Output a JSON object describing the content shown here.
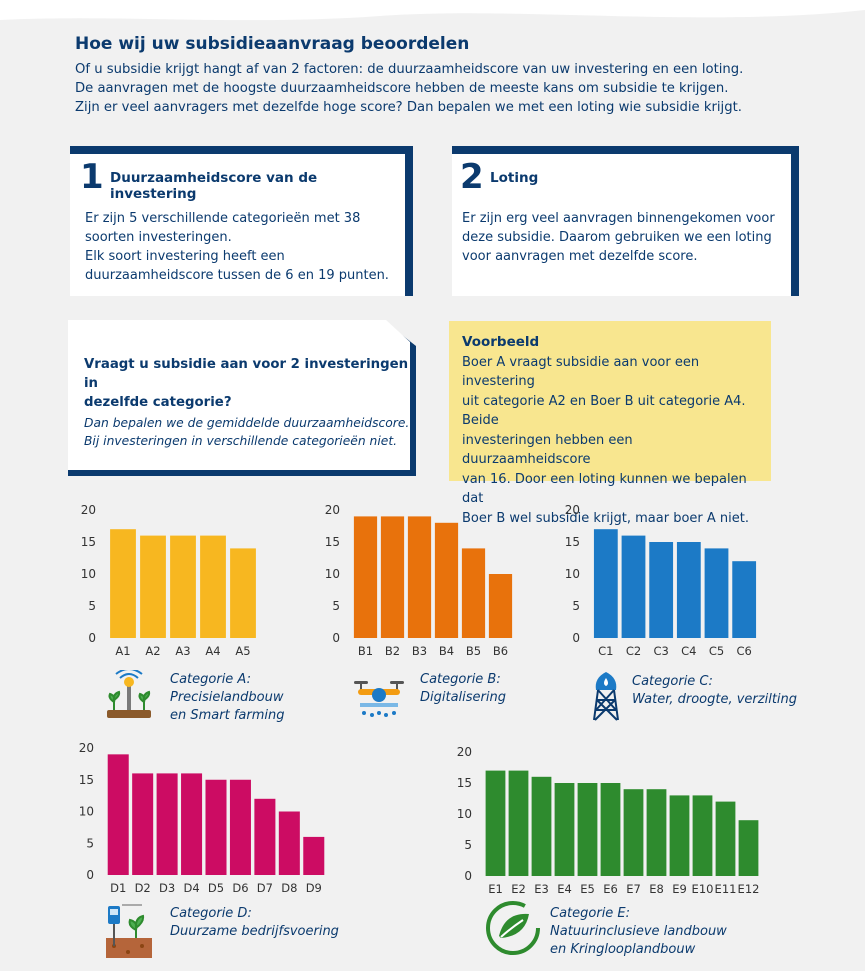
{
  "intro": {
    "title": "Hoe wij uw subsidieaanvraag beoordelen",
    "line1": "Of u subsidie krijgt hangt af van 2 factoren: de duurzaamheidscore van uw investering en een loting.",
    "line2": "De aanvragen met de hoogste duurzaamheidscore hebben de meeste kans om subsidie te krijgen.",
    "line3": "Zijn er veel aanvragers met dezelfde hoge score? Dan bepalen we met een loting wie subsidie krijgt."
  },
  "factor1": {
    "number": "1",
    "title": "Duurzaamheidscore van de investering",
    "body1": "Er zijn 5 verschillende categorieën met 38",
    "body2": "soorten investeringen.",
    "body3": "Elk soort investering heeft een",
    "body4": "duurzaamheidscore tussen de 6 en 19 punten."
  },
  "factor2": {
    "number": "2",
    "title": "Loting",
    "body1": "Er zijn erg veel aanvragen binnengekomen voor",
    "body2": "deze subsidie. Daarom gebruiken we een loting",
    "body3": "voor aanvragen met dezelfde score."
  },
  "question": {
    "title1": "Vraagt u subsidie aan voor 2 investeringen in",
    "title2": "dezelfde categorie?",
    "body1": "Dan bepalen we de gemiddelde duurzaamheidscore.",
    "body2": "Bij investeringen in verschillende categorieën niet."
  },
  "example": {
    "title": "Voorbeeld",
    "line1": "Boer A vraagt subsidie aan voor een investering",
    "line2": "uit categorie A2 en Boer B uit categorie A4. Beide",
    "line3": "investeringen hebben een duurzaamheidscore",
    "line4": "van 16. Door een loting kunnen we bepalen dat",
    "line5": "Boer B wel subsidie krijgt, maar boer A niet."
  },
  "colors": {
    "A": "#f7b720",
    "B": "#e8720c",
    "C": "#1c7ac6",
    "D": "#cc0c63",
    "E": "#2e8b2e",
    "navy": "#0b3a6e"
  },
  "icons": {
    "A": "smart-farming-icon",
    "B": "drone-icon",
    "C": "water-tower-icon",
    "D": "soil-sensor-icon",
    "E": "circular-leaf-icon"
  },
  "chart_data": [
    {
      "type": "bar",
      "categories": [
        "A1",
        "A2",
        "A3",
        "A4",
        "A5"
      ],
      "values": [
        17,
        16,
        16,
        16,
        14
      ],
      "ylim": [
        0,
        20
      ],
      "yticks": [
        0,
        5,
        10,
        15,
        20
      ],
      "caption1": "Categorie A:",
      "caption2": "Precisielandbouw",
      "caption3": "en Smart farming"
    },
    {
      "type": "bar",
      "categories": [
        "B1",
        "B2",
        "B3",
        "B4",
        "B5",
        "B6"
      ],
      "values": [
        19,
        19,
        19,
        18,
        14,
        10
      ],
      "ylim": [
        0,
        20
      ],
      "yticks": [
        0,
        5,
        10,
        15,
        20
      ],
      "caption1": "Categorie B:",
      "caption2": "Digitalisering"
    },
    {
      "type": "bar",
      "categories": [
        "C1",
        "C2",
        "C3",
        "C4",
        "C5",
        "C6"
      ],
      "values": [
        17,
        16,
        15,
        15,
        14,
        12
      ],
      "ylim": [
        0,
        20
      ],
      "yticks": [
        0,
        5,
        10,
        15,
        20
      ],
      "caption1": "Categorie C:",
      "caption2": "Water, droogte, verzilting"
    },
    {
      "type": "bar",
      "categories": [
        "D1",
        "D2",
        "D3",
        "D4",
        "D5",
        "D6",
        "D7",
        "D8",
        "D9"
      ],
      "values": [
        19,
        16,
        16,
        16,
        15,
        15,
        12,
        10,
        6
      ],
      "ylim": [
        0,
        20
      ],
      "yticks": [
        0,
        5,
        10,
        15,
        20
      ],
      "caption1": "Categorie D:",
      "caption2": "Duurzame bedrijfsvoering"
    },
    {
      "type": "bar",
      "categories": [
        "E1",
        "E2",
        "E3",
        "E4",
        "E5",
        "E6",
        "E7",
        "E8",
        "E9",
        "E10",
        "E11",
        "E12"
      ],
      "values": [
        17,
        17,
        16,
        15,
        15,
        15,
        14,
        14,
        13,
        13,
        12,
        9
      ],
      "ylim": [
        0,
        20
      ],
      "yticks": [
        0,
        5,
        10,
        15,
        20
      ],
      "caption1": "Categorie E:",
      "caption2": "Natuurinclusieve landbouw",
      "caption3": "en Kringlooplandbouw"
    }
  ]
}
